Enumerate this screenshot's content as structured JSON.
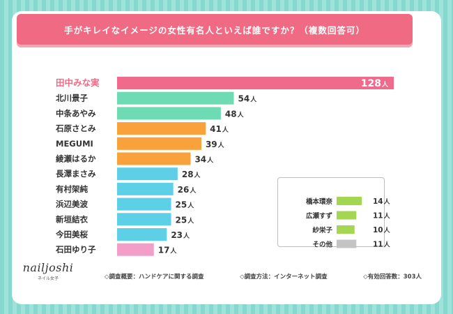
{
  "chart_data": {
    "type": "bar",
    "orientation": "horizontal",
    "title": "手がキレイなイメージの女性有名人といえば誰ですか？（複数回答可）",
    "unit": "人",
    "categories": [
      "田中みな実",
      "北川景子",
      "中条あやみ",
      "石原さとみ",
      "MEGUMI",
      "綾瀬はるか",
      "長澤まさみ",
      "有村架純",
      "浜辺美波",
      "新垣結衣",
      "今田美桜",
      "石田ゆり子"
    ],
    "values": [
      128,
      54,
      48,
      41,
      39,
      34,
      28,
      26,
      25,
      25,
      23,
      17
    ],
    "colors": [
      "#f06a8c",
      "#6fdbb4",
      "#6fdbb4",
      "#f9a23c",
      "#f9a23c",
      "#f9a23c",
      "#5dd0e8",
      "#5dd0e8",
      "#5dd0e8",
      "#5dd0e8",
      "#5dd0e8",
      "#f29ec8"
    ],
    "xlim": [
      0,
      128
    ],
    "inset_legend": {
      "categories": [
        "橋本環奈",
        "広瀬すず",
        "紗栄子",
        "その他"
      ],
      "values": [
        14,
        11,
        10,
        11
      ],
      "colors": [
        "#a5d651",
        "#a5d651",
        "#a5d651",
        "#c4c4c4"
      ]
    }
  },
  "logo": {
    "main": "nailjoshi",
    "sub": "ネイル女子"
  },
  "footer": {
    "survey_overview": "◇調査概要：ハンドケアに関する調査",
    "survey_method": "◇調査方法：インターネット調査",
    "respondents": "◇有効回答数：303人"
  }
}
